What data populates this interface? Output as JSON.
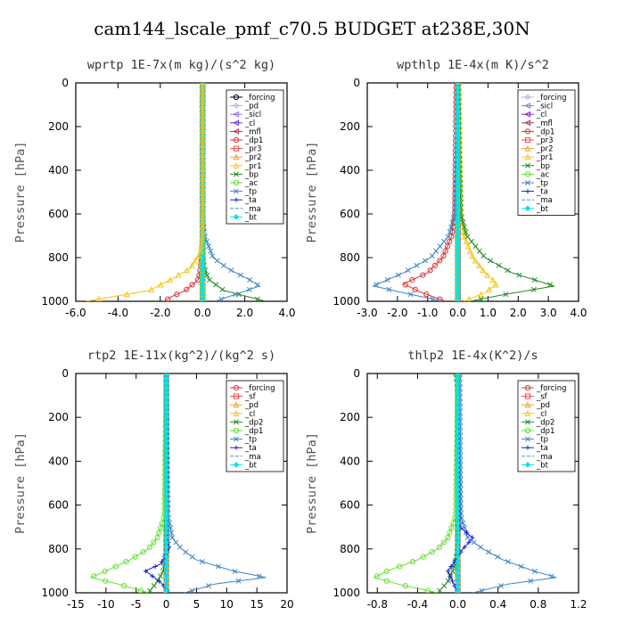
{
  "figure_title": "cam144_lscale_pmf_c70.5  BUDGET at238E,30N",
  "chart_data": [
    {
      "type": "line",
      "title": "wprtp  1E-7x(m kg)/(s^2 kg)",
      "ylabel": "Pressure [hPa]",
      "xlabel": "",
      "xlim": [
        -6,
        4
      ],
      "ylim": [
        1000,
        0
      ],
      "xticks": [
        -6,
        -4,
        -2,
        0,
        2,
        4
      ],
      "xtick_labels": [
        "-6.0",
        "-4.0",
        "-2.0",
        "0.0",
        "2.0",
        "4.0"
      ],
      "yticks": [
        0,
        200,
        400,
        600,
        800,
        1000
      ],
      "ytick_labels": [
        "0",
        "200",
        "400",
        "600",
        "800",
        "1000"
      ],
      "legend_position": "top-right",
      "series": [
        {
          "name": "_forcing",
          "color": "#000000",
          "marker": "o",
          "y": [
            0,
            100,
            200,
            300,
            400,
            500,
            600,
            700,
            800,
            900,
            1000
          ],
          "x": [
            0,
            0,
            0,
            0,
            0,
            0,
            0,
            0,
            0,
            0,
            0
          ]
        },
        {
          "name": "_pd",
          "color": "#c8a2e8",
          "marker": "d",
          "y": [
            0,
            500,
            1000
          ],
          "x": [
            0,
            0,
            0
          ]
        },
        {
          "name": "_sicl",
          "color": "#9370db",
          "marker": "<",
          "y": [
            0,
            500,
            1000
          ],
          "x": [
            0,
            0,
            0
          ]
        },
        {
          "name": "_cl",
          "color": "#7b2fbe",
          "marker": "<",
          "y": [
            0,
            500,
            1000
          ],
          "x": [
            0,
            0,
            0
          ]
        },
        {
          "name": "_mfl",
          "color": "#b0306a",
          "marker": "<",
          "y": [
            0,
            500,
            1000
          ],
          "x": [
            0,
            0,
            0
          ]
        },
        {
          "name": "_dp1",
          "color": "#e03030",
          "marker": "o",
          "y": [
            0,
            700,
            800,
            850,
            900,
            950,
            980,
            1000
          ],
          "x": [
            0,
            0,
            -0.05,
            -0.1,
            -0.2,
            -0.8,
            -1.5,
            -1.8
          ]
        },
        {
          "name": "_pr3",
          "color": "#e05050",
          "marker": "s",
          "y": [
            0,
            500,
            1000
          ],
          "x": [
            0,
            0,
            0
          ]
        },
        {
          "name": "_pr2",
          "color": "#f0a030",
          "marker": "^",
          "y": [
            0,
            500,
            1000
          ],
          "x": [
            0,
            0,
            0
          ]
        },
        {
          "name": "_pr1",
          "color": "#f5c518",
          "marker": "^",
          "y": [
            0,
            500,
            1000
          ],
          "x": [
            0,
            0,
            0
          ]
        },
        {
          "name": "_bp",
          "color": "#228b22",
          "marker": "x",
          "y": [
            0,
            800,
            850,
            900,
            950,
            980,
            1000
          ],
          "x": [
            0,
            0,
            0.1,
            0.3,
            1.0,
            2.2,
            3.0
          ]
        },
        {
          "name": "_ac",
          "color": "#66dd33",
          "marker": "o",
          "y": [
            0,
            500,
            1000
          ],
          "x": [
            0,
            0,
            0
          ]
        },
        {
          "name": "_tp",
          "color": "#3d85c6",
          "marker": "x",
          "y": [
            0,
            600,
            700,
            800,
            850,
            900,
            930,
            960,
            1000
          ],
          "x": [
            0,
            0,
            0.1,
            0.5,
            1.2,
            2.2,
            2.7,
            1.8,
            0.6
          ]
        },
        {
          "name": "_ta",
          "color": "#2020d0",
          "marker": "+",
          "y": [
            0,
            500,
            1000
          ],
          "x": [
            0,
            0,
            0
          ]
        },
        {
          "name": "_ma",
          "color": "#4a90d9",
          "marker": "-",
          "y": [
            0,
            500,
            1000
          ],
          "x": [
            0,
            0,
            0
          ]
        },
        {
          "name": "_bt",
          "color": "#00e5ee",
          "marker": "D",
          "y": [
            0,
            500,
            1000
          ],
          "x": [
            0,
            0,
            0
          ]
        },
        {
          "name": "",
          "color": "#f5c518",
          "marker": "^",
          "legend": false,
          "y": [
            0,
            700,
            780,
            850,
            900,
            950,
            1000
          ],
          "x": [
            0,
            0,
            -0.1,
            -0.6,
            -1.5,
            -2.5,
            -5.5
          ]
        }
      ]
    },
    {
      "type": "line",
      "title": "wpthlp  1E-4x(m K)/s^2",
      "ylabel": "Pressure [hPa]",
      "xlabel": "",
      "xlim": [
        -3,
        4
      ],
      "ylim": [
        1000,
        0
      ],
      "xticks": [
        -3,
        -2,
        -1,
        0,
        1,
        2,
        3,
        4
      ],
      "xtick_labels": [
        "-3.0",
        "-2.0",
        "-1.0",
        "0.0",
        "1.0",
        "2.0",
        "3.0",
        "4.0"
      ],
      "yticks": [
        0,
        200,
        400,
        600,
        800,
        1000
      ],
      "ytick_labels": [
        "0",
        "200",
        "400",
        "600",
        "800",
        "1000"
      ],
      "legend_position": "top-right",
      "series": [
        {
          "name": "_forcing",
          "color": "#c8a2e8",
          "marker": "d",
          "y": [
            0,
            500,
            1000
          ],
          "x": [
            0,
            0,
            0
          ]
        },
        {
          "name": "_sicl",
          "color": "#9370db",
          "marker": "<",
          "y": [
            0,
            500,
            1000
          ],
          "x": [
            0,
            0,
            0
          ]
        },
        {
          "name": "_cl",
          "color": "#7b2fbe",
          "marker": "<",
          "y": [
            0,
            500,
            1000
          ],
          "x": [
            0,
            0,
            0
          ]
        },
        {
          "name": "_mfl",
          "color": "#b0306a",
          "marker": "<",
          "y": [
            0,
            500,
            1000
          ],
          "x": [
            0,
            0,
            0
          ]
        },
        {
          "name": "_dp1",
          "color": "#e03030",
          "marker": "o",
          "y": [
            0,
            600,
            700,
            800,
            870,
            920,
            960,
            1000
          ],
          "x": [
            -0.05,
            -0.1,
            -0.2,
            -0.5,
            -1.0,
            -1.8,
            -1.2,
            -0.4
          ]
        },
        {
          "name": "_pr3",
          "color": "#e05050",
          "marker": "s",
          "y": [
            0,
            500,
            1000
          ],
          "x": [
            0,
            0,
            0
          ]
        },
        {
          "name": "_pr2",
          "color": "#f0a030",
          "marker": "^",
          "y": [
            0,
            500,
            1000
          ],
          "x": [
            0,
            0,
            0
          ]
        },
        {
          "name": "_pr1",
          "color": "#f5c518",
          "marker": "^",
          "y": [
            0,
            600,
            700,
            800,
            870,
            920,
            960,
            1000
          ],
          "x": [
            0.05,
            0.1,
            0.2,
            0.5,
            0.9,
            1.3,
            0.9,
            0.2
          ]
        },
        {
          "name": "_bp",
          "color": "#228b22",
          "marker": "x",
          "y": [
            0,
            600,
            700,
            800,
            870,
            930,
            970,
            1000
          ],
          "x": [
            0,
            0.1,
            0.3,
            0.9,
            1.8,
            3.2,
            1.5,
            0.4
          ]
        },
        {
          "name": "_ac",
          "color": "#66dd33",
          "marker": "o",
          "y": [
            0,
            500,
            1000
          ],
          "x": [
            0,
            0,
            0
          ]
        },
        {
          "name": "_tp",
          "color": "#3d85c6",
          "marker": "x",
          "y": [
            0,
            600,
            700,
            800,
            870,
            930,
            970,
            1000
          ],
          "x": [
            0,
            -0.1,
            -0.3,
            -0.9,
            -1.8,
            -2.8,
            -1.5,
            -0.5
          ]
        },
        {
          "name": "_ta",
          "color": "#2020d0",
          "marker": "+",
          "y": [
            0,
            500,
            1000
          ],
          "x": [
            0,
            0,
            0
          ]
        },
        {
          "name": "_ma",
          "color": "#4a90d9",
          "marker": "-",
          "y": [
            0,
            500,
            1000
          ],
          "x": [
            0,
            0,
            0
          ]
        },
        {
          "name": "_bt",
          "color": "#00e5ee",
          "marker": "D",
          "y": [
            0,
            500,
            1000
          ],
          "x": [
            0,
            0,
            0
          ]
        }
      ]
    },
    {
      "type": "line",
      "title": "rtp2  1E-11x(kg^2)/(kg^2 s)",
      "ylabel": "Pressure [hPa]",
      "xlabel": "",
      "xlim": [
        -15,
        20
      ],
      "ylim": [
        1000,
        0
      ],
      "xticks": [
        -15,
        -10,
        -5,
        0,
        5,
        10,
        15,
        20
      ],
      "xtick_labels": [
        "-15",
        "-10",
        "-5",
        "0",
        "5",
        "10",
        "15",
        "20"
      ],
      "yticks": [
        0,
        200,
        400,
        600,
        800,
        1000
      ],
      "ytick_labels": [
        "0",
        "200",
        "400",
        "600",
        "800",
        "1000"
      ],
      "legend_position": "top-right",
      "series": [
        {
          "name": "_forcing",
          "color": "#e03030",
          "marker": "o",
          "y": [
            0,
            100,
            200,
            300,
            400,
            500,
            600,
            700,
            800,
            900,
            1000
          ],
          "x": [
            0,
            0,
            0,
            0,
            0,
            0,
            0,
            0,
            0,
            0,
            0
          ]
        },
        {
          "name": "_sf",
          "color": "#e05050",
          "marker": "s",
          "y": [
            0,
            500,
            1000
          ],
          "x": [
            0,
            0,
            0
          ]
        },
        {
          "name": "_pd",
          "color": "#f0a030",
          "marker": "^",
          "y": [
            0,
            500,
            1000
          ],
          "x": [
            0,
            0,
            0
          ]
        },
        {
          "name": "_cl",
          "color": "#f5c518",
          "marker": "^",
          "y": [
            0,
            500,
            1000
          ],
          "x": [
            0,
            0,
            0
          ]
        },
        {
          "name": "_dp2",
          "color": "#228b22",
          "marker": "x",
          "y": [
            0,
            800,
            900,
            950,
            1000
          ],
          "x": [
            0,
            0,
            -0.5,
            -1.5,
            -3.0
          ]
        },
        {
          "name": "_dp1",
          "color": "#66dd33",
          "marker": "o",
          "y": [
            0,
            650,
            750,
            800,
            850,
            900,
            930,
            960,
            1000
          ],
          "x": [
            0,
            -0.3,
            -1.5,
            -3.0,
            -6.0,
            -10.0,
            -12.5,
            -8.0,
            -3.0
          ]
        },
        {
          "name": "_tp",
          "color": "#3d85c6",
          "marker": "x",
          "y": [
            0,
            650,
            750,
            800,
            850,
            900,
            930,
            960,
            1000
          ],
          "x": [
            0,
            0.3,
            1.0,
            2.5,
            5.0,
            11.0,
            16.5,
            8.0,
            3.0
          ]
        },
        {
          "name": "_ta",
          "color": "#2020d0",
          "marker": "+",
          "y": [
            0,
            700,
            800,
            870,
            900,
            950,
            1000
          ],
          "x": [
            0,
            0,
            0.5,
            -1.0,
            -3.5,
            -1.0,
            0.5
          ]
        },
        {
          "name": "_ma",
          "color": "#4a90d9",
          "marker": "-",
          "y": [
            0,
            500,
            1000
          ],
          "x": [
            0,
            0,
            0
          ]
        },
        {
          "name": "_bt",
          "color": "#00e5ee",
          "marker": "D",
          "y": [
            0,
            500,
            1000
          ],
          "x": [
            0,
            0,
            0
          ]
        }
      ]
    },
    {
      "type": "line",
      "title": "thlp2  1E-4x(K^2)/s",
      "ylabel": "Pressure [hPa]",
      "xlabel": "",
      "xlim": [
        -0.9,
        1.2
      ],
      "ylim": [
        1000,
        0
      ],
      "xticks": [
        -0.8,
        -0.4,
        0,
        0.4,
        0.8,
        1.2
      ],
      "xtick_labels": [
        "-0.8",
        "-0.4",
        "0.0",
        "0.4",
        "0.8",
        "1.2"
      ],
      "yticks": [
        0,
        200,
        400,
        600,
        800,
        1000
      ],
      "ytick_labels": [
        "0",
        "200",
        "400",
        "600",
        "800",
        "1000"
      ],
      "legend_position": "top-right",
      "series": [
        {
          "name": "_forcing",
          "color": "#e03030",
          "marker": "o",
          "y": [
            0,
            100,
            200,
            300,
            400,
            500,
            600,
            700,
            800,
            900,
            1000
          ],
          "x": [
            0,
            0,
            0,
            0,
            0,
            0,
            0,
            0,
            0,
            0,
            0
          ]
        },
        {
          "name": "_sf",
          "color": "#e05050",
          "marker": "s",
          "y": [
            0,
            500,
            1000
          ],
          "x": [
            0,
            0,
            0
          ]
        },
        {
          "name": "_pd",
          "color": "#f0a030",
          "marker": "^",
          "y": [
            0,
            500,
            1000
          ],
          "x": [
            0,
            0,
            0
          ]
        },
        {
          "name": "_cl",
          "color": "#f5c518",
          "marker": "^",
          "y": [
            0,
            500,
            1000
          ],
          "x": [
            0,
            0,
            0
          ]
        },
        {
          "name": "_dp2",
          "color": "#228b22",
          "marker": "x",
          "y": [
            0,
            40,
            100,
            800,
            900,
            950,
            1000
          ],
          "x": [
            -0.02,
            -0.01,
            0,
            0,
            -0.05,
            -0.1,
            -0.2
          ]
        },
        {
          "name": "_dp1",
          "color": "#66dd33",
          "marker": "o",
          "y": [
            0,
            650,
            750,
            800,
            850,
            900,
            930,
            960,
            1000
          ],
          "x": [
            0,
            -0.02,
            -0.1,
            -0.2,
            -0.4,
            -0.7,
            -0.83,
            -0.6,
            -0.2
          ]
        },
        {
          "name": "_tp",
          "color": "#3d85c6",
          "marker": "x",
          "y": [
            0,
            650,
            750,
            800,
            850,
            900,
            930,
            960,
            1000
          ],
          "x": [
            0.02,
            0.03,
            0.1,
            0.25,
            0.45,
            0.75,
            0.98,
            0.5,
            0.15
          ]
        },
        {
          "name": "_ta",
          "color": "#2020d0",
          "marker": "+",
          "y": [
            0,
            700,
            750,
            800,
            870,
            900,
            950,
            1000
          ],
          "x": [
            0,
            0.02,
            0.15,
            0.05,
            -0.05,
            -0.1,
            -0.05,
            0
          ]
        },
        {
          "name": "_ma",
          "color": "#4a90d9",
          "marker": "-",
          "y": [
            0,
            500,
            1000
          ],
          "x": [
            0,
            0,
            0
          ]
        },
        {
          "name": "_bt",
          "color": "#00e5ee",
          "marker": "D",
          "y": [
            0,
            500,
            1000
          ],
          "x": [
            0,
            0,
            0
          ]
        }
      ]
    }
  ]
}
